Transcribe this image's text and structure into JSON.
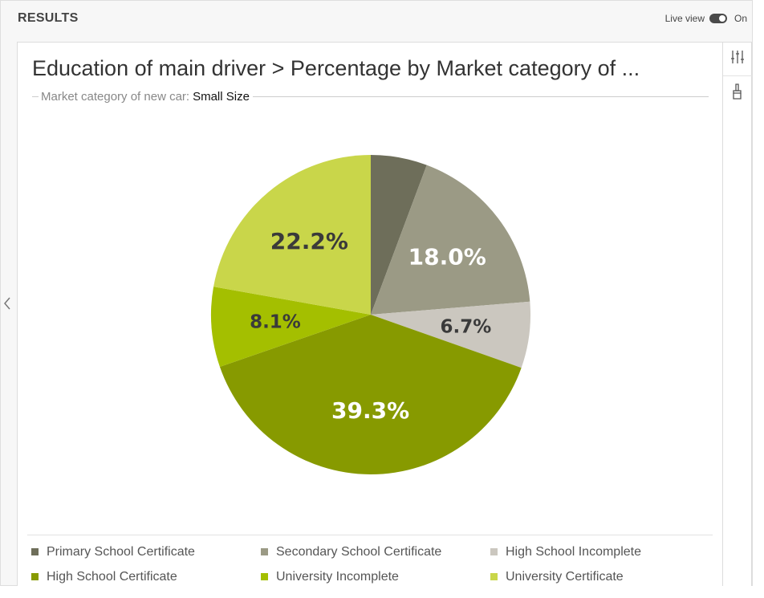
{
  "header": {
    "title": "RESULTS",
    "live_view_label": "Live view",
    "live_view_state": "On"
  },
  "chart": {
    "title": "Education of main driver > Percentage by Market category of ...",
    "filter_label": "Market category of new car:",
    "filter_value": "Small Size"
  },
  "chart_data": {
    "type": "pie",
    "title": "Education of main driver > Percentage by Market category of ...",
    "subtitle": "Market category of new car: Small Size",
    "legend_position": "bottom",
    "slices": [
      {
        "name": "Primary School Certificate",
        "value": 5.7,
        "label": "",
        "color": "#6e6e5a",
        "label_color": "#ffffff"
      },
      {
        "name": "Secondary School Certificate",
        "value": 18.0,
        "label": "18.0%",
        "color": "#9b9a85",
        "label_color": "#ffffff"
      },
      {
        "name": "High School Incomplete",
        "value": 6.7,
        "label": "6.7%",
        "color": "#cbc7bf",
        "label_color": "#3a3a3a"
      },
      {
        "name": "High School Certificate",
        "value": 39.3,
        "label": "39.3%",
        "color": "#879a00",
        "label_color": "#ffffff"
      },
      {
        "name": "University Incomplete",
        "value": 8.1,
        "label": "8.1%",
        "color": "#a4bf00",
        "label_color": "#3a3a3a"
      },
      {
        "name": "University Certificate",
        "value": 22.2,
        "label": "22.2%",
        "color": "#c9d64a",
        "label_color": "#3a3a3a"
      }
    ]
  },
  "legend": [
    {
      "label": "Primary School Certificate",
      "color": "#6e6e5a"
    },
    {
      "label": "Secondary School Certificate",
      "color": "#9b9a85"
    },
    {
      "label": "High School Incomplete",
      "color": "#cbc7bf"
    },
    {
      "label": "High School Certificate",
      "color": "#879a00"
    },
    {
      "label": "University Incomplete",
      "color": "#a4bf00"
    },
    {
      "label": "University Certificate",
      "color": "#c9d64a"
    }
  ],
  "toolbar": {
    "icons": [
      "sliders-icon",
      "paintbrush-icon"
    ]
  }
}
